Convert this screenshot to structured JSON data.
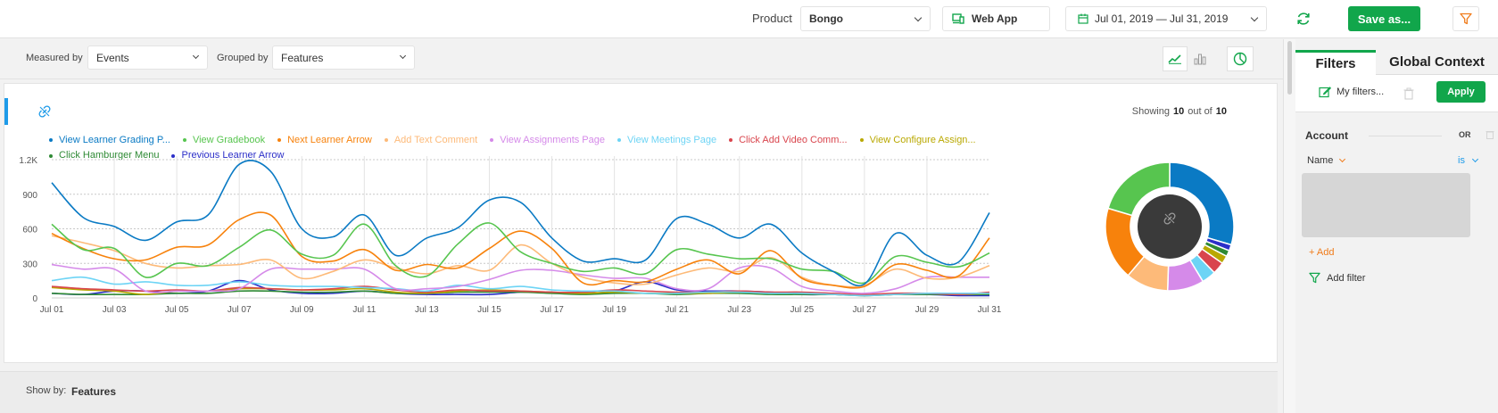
{
  "topbar": {
    "product_label": "Product",
    "product_value": "Bongo",
    "app_value": "Web App",
    "date_range": "Jul 01, 2019 — Jul 31, 2019",
    "save_label": "Save as..."
  },
  "controls": {
    "measured_label": "Measured by",
    "measured_value": "Events",
    "grouped_label": "Grouped by",
    "grouped_value": "Features"
  },
  "summary": {
    "showing_label": "Showing",
    "showing_count": "10",
    "out_of_label": "out of",
    "total_count": "10"
  },
  "chart_data": {
    "type": "line",
    "x": [
      "Jul 01",
      "Jul 02",
      "Jul 03",
      "Jul 04",
      "Jul 05",
      "Jul 06",
      "Jul 07",
      "Jul 08",
      "Jul 09",
      "Jul 10",
      "Jul 11",
      "Jul 12",
      "Jul 13",
      "Jul 14",
      "Jul 15",
      "Jul 16",
      "Jul 17",
      "Jul 18",
      "Jul 19",
      "Jul 20",
      "Jul 21",
      "Jul 22",
      "Jul 23",
      "Jul 24",
      "Jul 25",
      "Jul 26",
      "Jul 27",
      "Jul 28",
      "Jul 29",
      "Jul 30",
      "Jul 31"
    ],
    "x_tick_labels": [
      "Jul 01",
      "Jul 03",
      "Jul 05",
      "Jul 07",
      "Jul 09",
      "Jul 11",
      "Jul 13",
      "Jul 15",
      "Jul 17",
      "Jul 19",
      "Jul 21",
      "Jul 23",
      "Jul 25",
      "Jul 27",
      "Jul 29",
      "Jul 31"
    ],
    "y_tick_labels": [
      "0",
      "300",
      "600",
      "900",
      "1.2K"
    ],
    "ylim": [
      0,
      1200
    ],
    "grid": true,
    "series": [
      {
        "name": "View Learner Grading P...",
        "color": "#0a7ac4",
        "values": [
          1000,
          700,
          620,
          500,
          660,
          720,
          1160,
          1100,
          600,
          530,
          720,
          370,
          520,
          610,
          850,
          830,
          520,
          320,
          340,
          330,
          690,
          640,
          520,
          640,
          390,
          230,
          120,
          560,
          370,
          310,
          740
        ]
      },
      {
        "name": "View Gradebook",
        "color": "#57c54f",
        "values": [
          640,
          420,
          430,
          180,
          300,
          280,
          440,
          590,
          380,
          370,
          640,
          280,
          190,
          470,
          650,
          400,
          300,
          230,
          260,
          210,
          420,
          380,
          340,
          340,
          250,
          230,
          130,
          360,
          310,
          270,
          390
        ]
      },
      {
        "name": "Next Learner Arrow",
        "color": "#f7820c",
        "values": [
          560,
          430,
          340,
          330,
          440,
          460,
          680,
          720,
          360,
          320,
          420,
          240,
          290,
          260,
          430,
          580,
          430,
          130,
          150,
          140,
          250,
          330,
          210,
          410,
          170,
          110,
          100,
          290,
          240,
          190,
          520
        ]
      },
      {
        "name": "Add Text Comment",
        "color": "#fdba79",
        "values": [
          540,
          480,
          410,
          300,
          260,
          280,
          290,
          330,
          170,
          230,
          330,
          260,
          210,
          280,
          240,
          460,
          300,
          180,
          130,
          120,
          200,
          260,
          230,
          350,
          180,
          110,
          110,
          250,
          170,
          180,
          280
        ]
      },
      {
        "name": "View Assignments Page",
        "color": "#d58ae9",
        "values": [
          290,
          250,
          250,
          60,
          60,
          60,
          80,
          250,
          250,
          250,
          250,
          80,
          80,
          100,
          160,
          240,
          240,
          200,
          170,
          170,
          80,
          80,
          260,
          260,
          100,
          60,
          40,
          80,
          180,
          180,
          180
        ]
      },
      {
        "name": "View Meetings Page",
        "color": "#6dd4f5",
        "values": [
          150,
          180,
          120,
          140,
          110,
          110,
          140,
          110,
          100,
          100,
          90,
          80,
          60,
          110,
          80,
          100,
          70,
          60,
          60,
          40,
          40,
          50,
          50,
          40,
          40,
          30,
          20,
          30,
          40,
          40,
          40
        ]
      },
      {
        "name": "Click Add Video Comm...",
        "color": "#d9454d",
        "values": [
          100,
          80,
          70,
          60,
          70,
          60,
          90,
          80,
          70,
          80,
          100,
          70,
          50,
          70,
          60,
          60,
          50,
          50,
          70,
          60,
          50,
          50,
          60,
          50,
          50,
          40,
          30,
          40,
          40,
          30,
          50
        ]
      },
      {
        "name": "View Configure Assign...",
        "color": "#b9a800",
        "values": [
          90,
          70,
          60,
          30,
          60,
          60,
          80,
          80,
          70,
          70,
          80,
          50,
          40,
          60,
          70,
          60,
          50,
          40,
          50,
          40,
          40,
          40,
          50,
          40,
          40,
          30,
          20,
          30,
          40,
          30,
          40
        ]
      },
      {
        "name": "Click Hamburger Menu",
        "color": "#2f8a35",
        "values": [
          40,
          30,
          30,
          30,
          40,
          40,
          60,
          60,
          50,
          50,
          60,
          40,
          40,
          50,
          50,
          50,
          40,
          30,
          40,
          40,
          30,
          40,
          40,
          30,
          30,
          30,
          20,
          30,
          30,
          30,
          30
        ]
      },
      {
        "name": "Previous Learner Arrow",
        "color": "#2c2fc8",
        "values": [
          40,
          30,
          60,
          60,
          40,
          60,
          150,
          70,
          40,
          40,
          60,
          40,
          30,
          30,
          30,
          50,
          50,
          40,
          60,
          140,
          70,
          60,
          60,
          50,
          30,
          30,
          20,
          30,
          30,
          20,
          20
        ]
      }
    ],
    "donut": {
      "center_color": "#3a3a3a",
      "slices": [
        {
          "name": "View Learner Grading P...",
          "color": "#0a7ac4",
          "share": 0.29
        },
        {
          "name": "Previous Learner Arrow",
          "color": "#2c2fc8",
          "share": 0.015
        },
        {
          "name": "Click Hamburger Menu",
          "color": "#2f8a35",
          "share": 0.015
        },
        {
          "name": "View Configure Assign...",
          "color": "#b9a800",
          "share": 0.02
        },
        {
          "name": "Click Add Video Comm...",
          "color": "#d9454d",
          "share": 0.03
        },
        {
          "name": "View Meetings Page",
          "color": "#6dd4f5",
          "share": 0.035
        },
        {
          "name": "View Assignments Page",
          "color": "#d58ae9",
          "share": 0.09
        },
        {
          "name": "Add Text Comment",
          "color": "#fdba79",
          "share": 0.105
        },
        {
          "name": "Next Learner Arrow",
          "color": "#f7820c",
          "share": 0.18
        },
        {
          "name": "View Gradebook",
          "color": "#57c54f",
          "share": 0.2
        }
      ]
    }
  },
  "showby": {
    "label": "Show by:",
    "value": "Features"
  },
  "panel": {
    "tab_filters": "Filters",
    "tab_global": "Global Context",
    "my_filters": "My filters...",
    "apply_label": "Apply",
    "account_label": "Account",
    "or_label": "OR",
    "name_label": "Name",
    "is_label": "is",
    "add_label": "+ Add",
    "add_filter_label": "Add filter"
  },
  "colors": {
    "brand_green": "#11a64b",
    "accent_blue": "#1e9be9",
    "link_orange": "#f07b1a"
  }
}
